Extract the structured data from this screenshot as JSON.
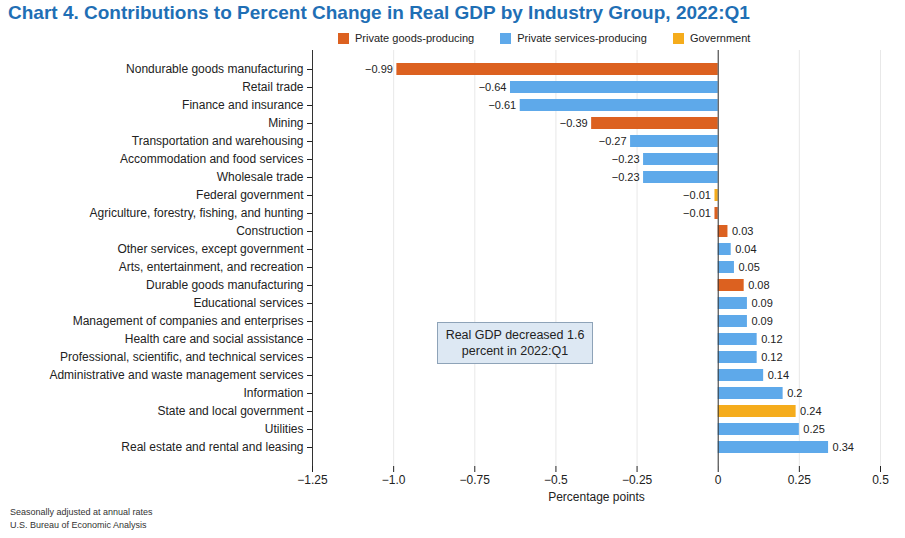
{
  "chart_data": {
    "type": "bar",
    "orientation": "horizontal",
    "title": "Chart 4. Contributions to Percent Change in Real GDP by Industry Group, 2022:Q1",
    "x_label": "Percentage points",
    "annotation": "Real GDP decreased 1.6 percent in 2022:Q1",
    "notes": [
      "Seasonally adjusted at annual rates",
      "U.S. Bureau of Economic Analysis"
    ],
    "categories": [
      "Nondurable goods manufacturing",
      "Retail trade",
      "Finance and insurance",
      "Mining",
      "Transportation and warehousing",
      "Accommodation and food services",
      "Wholesale trade",
      "Federal government",
      "Agriculture, forestry, fishing, and hunting",
      "Construction",
      "Other services, except government",
      "Arts, entertainment, and recreation",
      "Durable goods manufacturing",
      "Educational services",
      "Management of companies and enterprises",
      "Health care and social assistance",
      "Professional, scientific, and technical services",
      "Administrative and waste management services",
      "Information",
      "State and local government",
      "Utilities",
      "Real estate and rental and leasing"
    ],
    "series": [
      {
        "name": "Private goods-producing",
        "color": "#dc6120",
        "values": [
          -0.99,
          null,
          null,
          -0.39,
          null,
          null,
          null,
          null,
          -0.01,
          0.03,
          null,
          null,
          0.08,
          null,
          null,
          null,
          null,
          null,
          null,
          null,
          null,
          null
        ],
        "value_labels": [
          "−0.99",
          null,
          null,
          "−0.39",
          null,
          null,
          null,
          null,
          "−0.01",
          "0.03",
          null,
          null,
          "0.08",
          null,
          null,
          null,
          null,
          null,
          null,
          null,
          null,
          null
        ]
      },
      {
        "name": "Private services-producing",
        "color": "#5ea9ea",
        "values": [
          null,
          -0.64,
          -0.61,
          null,
          -0.27,
          -0.23,
          -0.23,
          null,
          null,
          null,
          0.04,
          0.05,
          null,
          0.09,
          0.09,
          0.12,
          0.12,
          0.14,
          0.2,
          null,
          0.25,
          0.34
        ],
        "value_labels": [
          null,
          "−0.64",
          "−0.61",
          null,
          "−0.27",
          "−0.23",
          "−0.23",
          null,
          null,
          null,
          "0.04",
          "0.05",
          null,
          "0.09",
          "0.09",
          "0.12",
          "0.12",
          "0.14",
          "0.2",
          null,
          "0.25",
          "0.34"
        ]
      },
      {
        "name": "Government",
        "color": "#f5ac1c",
        "values": [
          null,
          null,
          null,
          null,
          null,
          null,
          null,
          -0.01,
          null,
          null,
          null,
          null,
          null,
          null,
          null,
          null,
          null,
          null,
          null,
          0.24,
          null,
          null
        ],
        "value_labels": [
          null,
          null,
          null,
          null,
          null,
          null,
          null,
          "−0.01",
          null,
          null,
          null,
          null,
          null,
          null,
          null,
          null,
          null,
          null,
          null,
          "0.24",
          null,
          null
        ]
      }
    ],
    "xlim": [
      -1.25,
      0.5
    ],
    "xticks": [
      {
        "value": -1.25,
        "label": "−1.25"
      },
      {
        "value": -1,
        "label": "−1.0"
      },
      {
        "value": -0.75,
        "label": "−0.75"
      },
      {
        "value": -0.5,
        "label": "−0.5"
      },
      {
        "value": -0.25,
        "label": "−0.25"
      },
      0,
      0.25,
      0.5
    ],
    "grid": true,
    "legend": "top",
    "data_labels": true
  }
}
